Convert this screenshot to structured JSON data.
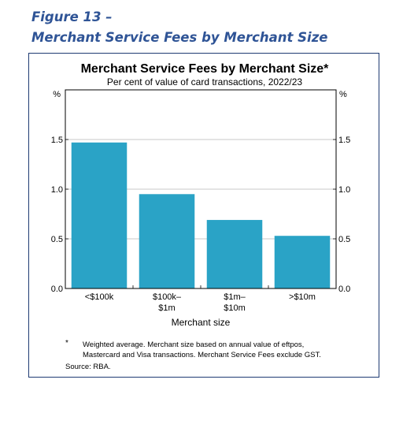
{
  "figure": {
    "label": "Figure 13 –",
    "title": "Merchant Service Fees by Merchant Size"
  },
  "chart_data": {
    "type": "bar",
    "title": "Merchant Service Fees by Merchant Size*",
    "subtitle": "Per cent of value of card transactions, 2022/23",
    "categories": [
      [
        "<$100k"
      ],
      [
        "$100k–",
        "$1m"
      ],
      [
        "$1m–",
        "$10m"
      ],
      [
        ">$10m"
      ]
    ],
    "values": [
      1.47,
      0.95,
      0.69,
      0.53
    ],
    "xlabel": "Merchant size",
    "y_unit_left": "%",
    "y_unit_right": "%",
    "ylim": [
      0,
      2.0
    ],
    "yticks": [
      "0.0",
      "0.5",
      "1.0",
      "1.5"
    ],
    "ytick_values": [
      0,
      0.5,
      1.0,
      1.5
    ],
    "grid": true,
    "bar_color": "#2aa3c6",
    "footnote": {
      "marker": "*",
      "lines": [
        "Weighted average. Merchant size based on annual value of eftpos,",
        "Mastercard and Visa transactions. Merchant Service Fees exclude GST."
      ]
    },
    "source": "Source:   RBA."
  }
}
